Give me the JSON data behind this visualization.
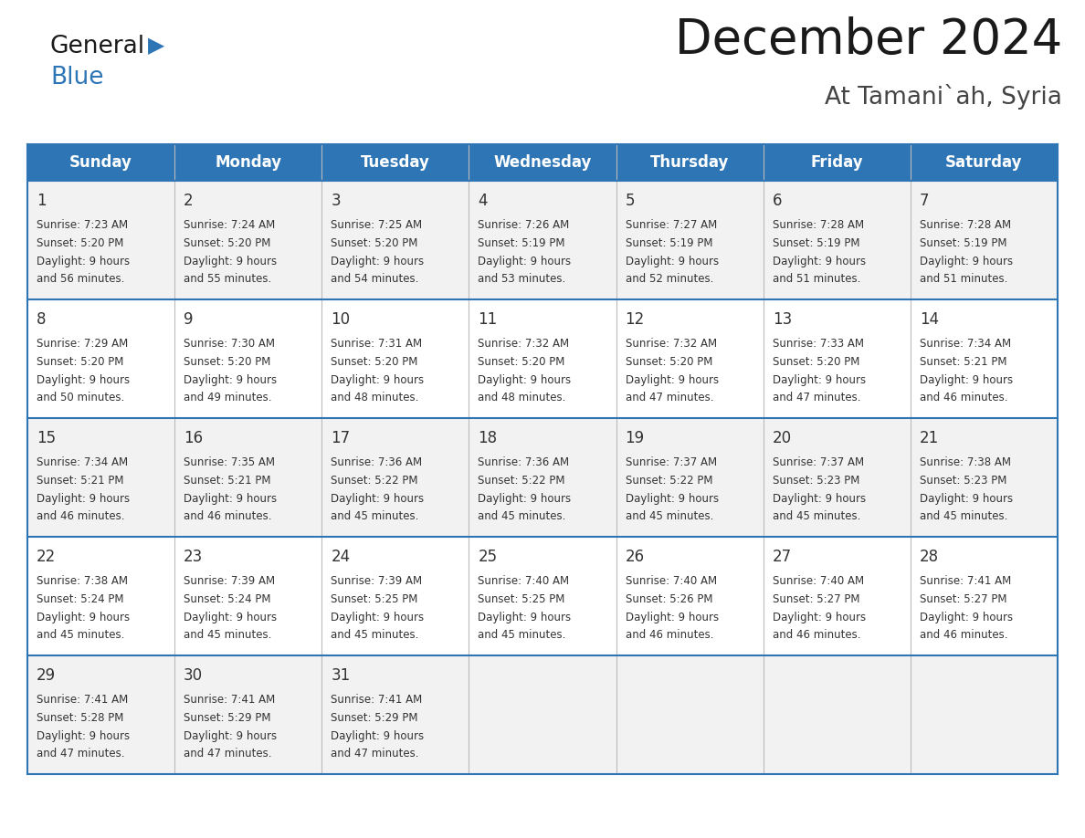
{
  "title": "December 2024",
  "subtitle": "At Tamani`ah, Syria",
  "header_color": "#2E75B6",
  "header_text_color": "#FFFFFF",
  "cell_bg_even": "#F2F2F2",
  "cell_bg_odd": "#FFFFFF",
  "day_names": [
    "Sunday",
    "Monday",
    "Tuesday",
    "Wednesday",
    "Thursday",
    "Friday",
    "Saturday"
  ],
  "weeks": [
    [
      {
        "day": 1,
        "sunrise": "7:23 AM",
        "sunset": "5:20 PM",
        "daylight_hours": 9,
        "daylight_minutes": 56
      },
      {
        "day": 2,
        "sunrise": "7:24 AM",
        "sunset": "5:20 PM",
        "daylight_hours": 9,
        "daylight_minutes": 55
      },
      {
        "day": 3,
        "sunrise": "7:25 AM",
        "sunset": "5:20 PM",
        "daylight_hours": 9,
        "daylight_minutes": 54
      },
      {
        "day": 4,
        "sunrise": "7:26 AM",
        "sunset": "5:19 PM",
        "daylight_hours": 9,
        "daylight_minutes": 53
      },
      {
        "day": 5,
        "sunrise": "7:27 AM",
        "sunset": "5:19 PM",
        "daylight_hours": 9,
        "daylight_minutes": 52
      },
      {
        "day": 6,
        "sunrise": "7:28 AM",
        "sunset": "5:19 PM",
        "daylight_hours": 9,
        "daylight_minutes": 51
      },
      {
        "day": 7,
        "sunrise": "7:28 AM",
        "sunset": "5:19 PM",
        "daylight_hours": 9,
        "daylight_minutes": 51
      }
    ],
    [
      {
        "day": 8,
        "sunrise": "7:29 AM",
        "sunset": "5:20 PM",
        "daylight_hours": 9,
        "daylight_minutes": 50
      },
      {
        "day": 9,
        "sunrise": "7:30 AM",
        "sunset": "5:20 PM",
        "daylight_hours": 9,
        "daylight_minutes": 49
      },
      {
        "day": 10,
        "sunrise": "7:31 AM",
        "sunset": "5:20 PM",
        "daylight_hours": 9,
        "daylight_minutes": 48
      },
      {
        "day": 11,
        "sunrise": "7:32 AM",
        "sunset": "5:20 PM",
        "daylight_hours": 9,
        "daylight_minutes": 48
      },
      {
        "day": 12,
        "sunrise": "7:32 AM",
        "sunset": "5:20 PM",
        "daylight_hours": 9,
        "daylight_minutes": 47
      },
      {
        "day": 13,
        "sunrise": "7:33 AM",
        "sunset": "5:20 PM",
        "daylight_hours": 9,
        "daylight_minutes": 47
      },
      {
        "day": 14,
        "sunrise": "7:34 AM",
        "sunset": "5:21 PM",
        "daylight_hours": 9,
        "daylight_minutes": 46
      }
    ],
    [
      {
        "day": 15,
        "sunrise": "7:34 AM",
        "sunset": "5:21 PM",
        "daylight_hours": 9,
        "daylight_minutes": 46
      },
      {
        "day": 16,
        "sunrise": "7:35 AM",
        "sunset": "5:21 PM",
        "daylight_hours": 9,
        "daylight_minutes": 46
      },
      {
        "day": 17,
        "sunrise": "7:36 AM",
        "sunset": "5:22 PM",
        "daylight_hours": 9,
        "daylight_minutes": 45
      },
      {
        "day": 18,
        "sunrise": "7:36 AM",
        "sunset": "5:22 PM",
        "daylight_hours": 9,
        "daylight_minutes": 45
      },
      {
        "day": 19,
        "sunrise": "7:37 AM",
        "sunset": "5:22 PM",
        "daylight_hours": 9,
        "daylight_minutes": 45
      },
      {
        "day": 20,
        "sunrise": "7:37 AM",
        "sunset": "5:23 PM",
        "daylight_hours": 9,
        "daylight_minutes": 45
      },
      {
        "day": 21,
        "sunrise": "7:38 AM",
        "sunset": "5:23 PM",
        "daylight_hours": 9,
        "daylight_minutes": 45
      }
    ],
    [
      {
        "day": 22,
        "sunrise": "7:38 AM",
        "sunset": "5:24 PM",
        "daylight_hours": 9,
        "daylight_minutes": 45
      },
      {
        "day": 23,
        "sunrise": "7:39 AM",
        "sunset": "5:24 PM",
        "daylight_hours": 9,
        "daylight_minutes": 45
      },
      {
        "day": 24,
        "sunrise": "7:39 AM",
        "sunset": "5:25 PM",
        "daylight_hours": 9,
        "daylight_minutes": 45
      },
      {
        "day": 25,
        "sunrise": "7:40 AM",
        "sunset": "5:25 PM",
        "daylight_hours": 9,
        "daylight_minutes": 45
      },
      {
        "day": 26,
        "sunrise": "7:40 AM",
        "sunset": "5:26 PM",
        "daylight_hours": 9,
        "daylight_minutes": 46
      },
      {
        "day": 27,
        "sunrise": "7:40 AM",
        "sunset": "5:27 PM",
        "daylight_hours": 9,
        "daylight_minutes": 46
      },
      {
        "day": 28,
        "sunrise": "7:41 AM",
        "sunset": "5:27 PM",
        "daylight_hours": 9,
        "daylight_minutes": 46
      }
    ],
    [
      {
        "day": 29,
        "sunrise": "7:41 AM",
        "sunset": "5:28 PM",
        "daylight_hours": 9,
        "daylight_minutes": 47
      },
      {
        "day": 30,
        "sunrise": "7:41 AM",
        "sunset": "5:29 PM",
        "daylight_hours": 9,
        "daylight_minutes": 47
      },
      {
        "day": 31,
        "sunrise": "7:41 AM",
        "sunset": "5:29 PM",
        "daylight_hours": 9,
        "daylight_minutes": 47
      },
      null,
      null,
      null,
      null
    ]
  ],
  "border_color": "#2E75B6",
  "divider_color": "#5B9BD5",
  "vert_divider_color": "#BBBBBB",
  "text_color": "#333333"
}
